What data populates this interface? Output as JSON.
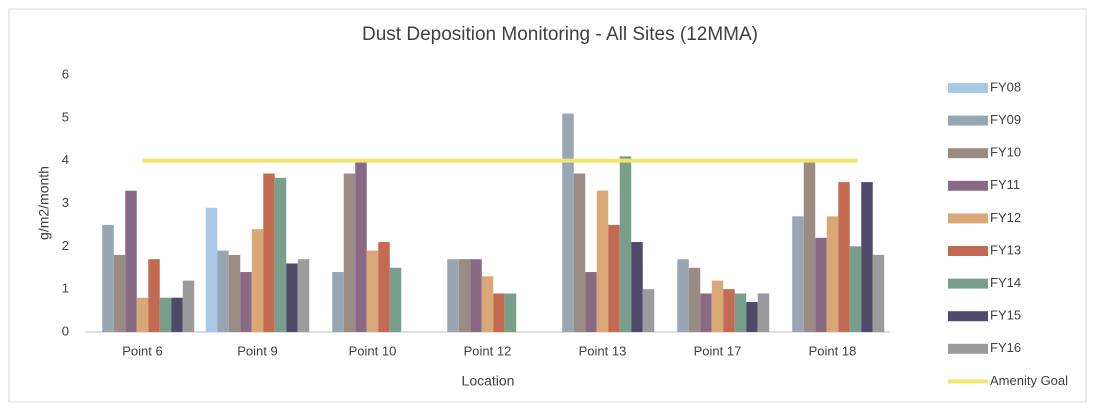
{
  "chart_data": {
    "type": "bar",
    "title": "Dust Deposition Monitoring - All Sites (12MMA)",
    "x_label": "Location",
    "y_label": "g/m2/month",
    "categories": [
      "Point 6",
      "Point 9",
      "Point 10",
      "Point 12",
      "Point 13",
      "Point 17",
      "Point 18"
    ],
    "series": [
      {
        "name": "FY08",
        "color": "#a9c8e6",
        "values": [
          null,
          2.9,
          null,
          null,
          null,
          null,
          null
        ]
      },
      {
        "name": "FY09",
        "color": "#98a6b4",
        "values": [
          2.5,
          1.9,
          1.4,
          1.7,
          5.1,
          1.7,
          2.7
        ]
      },
      {
        "name": "FY10",
        "color": "#9a8b83",
        "values": [
          1.8,
          1.8,
          3.7,
          1.7,
          3.7,
          1.5,
          4.0
        ]
      },
      {
        "name": "FY11",
        "color": "#8a6985",
        "values": [
          3.3,
          1.4,
          4.0,
          1.7,
          1.4,
          0.9,
          2.2
        ]
      },
      {
        "name": "FY12",
        "color": "#d9a877",
        "values": [
          0.8,
          2.4,
          1.9,
          1.3,
          3.3,
          1.2,
          2.7
        ]
      },
      {
        "name": "FY13",
        "color": "#c36b52",
        "values": [
          1.7,
          3.7,
          2.1,
          0.9,
          2.5,
          1.0,
          3.5
        ]
      },
      {
        "name": "FY14",
        "color": "#779f8c",
        "values": [
          0.8,
          3.6,
          1.5,
          0.9,
          4.1,
          0.9,
          2.0
        ]
      },
      {
        "name": "FY15",
        "color": "#4f4a6a",
        "values": [
          0.8,
          1.6,
          null,
          null,
          2.1,
          0.7,
          3.5
        ]
      },
      {
        "name": "FY16",
        "color": "#9b9b9b",
        "values": [
          1.2,
          1.7,
          null,
          null,
          1.0,
          0.9,
          1.8
        ]
      },
      {
        "name": "Amenity Goal",
        "color": "#f1e46f",
        "type": "line",
        "values": [
          4,
          4,
          4,
          4,
          4,
          4,
          4
        ]
      }
    ],
    "ylim": [
      0,
      6
    ],
    "yticks": [
      0,
      1,
      2,
      3,
      4,
      5,
      6
    ],
    "grid": false,
    "legend": "right"
  }
}
